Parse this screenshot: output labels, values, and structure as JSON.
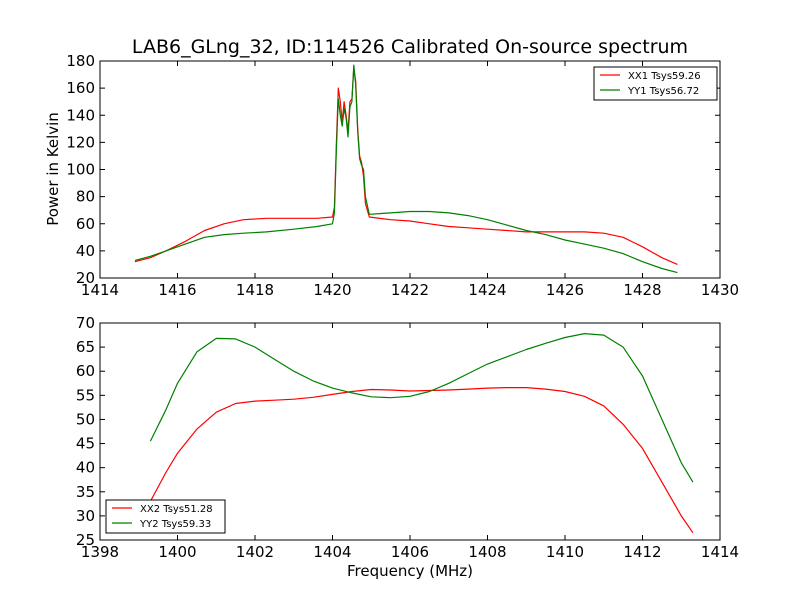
{
  "figure": {
    "title": "LAB6_GLng_32, ID:114526 Calibrated On-source spectrum"
  },
  "chart_data": [
    {
      "type": "line",
      "title": "LAB6_GLng_32, ID:114526 Calibrated On-source spectrum",
      "xlabel": "",
      "ylabel": "Power in Kelvin",
      "xlim": [
        1414,
        1430
      ],
      "ylim": [
        20,
        180
      ],
      "xticks": [
        1414,
        1416,
        1418,
        1420,
        1422,
        1424,
        1426,
        1428,
        1430
      ],
      "yticks": [
        20,
        40,
        60,
        80,
        100,
        120,
        140,
        160,
        180
      ],
      "grid": false,
      "legend_position": "top-right",
      "series": [
        {
          "name": "XX1 Tsys59.26",
          "color": "#ff0000",
          "points": [
            [
              1414.9,
              32
            ],
            [
              1415.3,
              35
            ],
            [
              1415.7,
              40
            ],
            [
              1416.2,
              47
            ],
            [
              1416.7,
              55
            ],
            [
              1417.2,
              60
            ],
            [
              1417.7,
              63
            ],
            [
              1418.3,
              64
            ],
            [
              1419.0,
              64
            ],
            [
              1419.6,
              64
            ],
            [
              1420.0,
              65
            ],
            [
              1420.05,
              72
            ],
            [
              1420.1,
              120
            ],
            [
              1420.15,
              160
            ],
            [
              1420.2,
              150
            ],
            [
              1420.25,
              135
            ],
            [
              1420.3,
              150
            ],
            [
              1420.35,
              140
            ],
            [
              1420.4,
              128
            ],
            [
              1420.45,
              150
            ],
            [
              1420.5,
              152
            ],
            [
              1420.55,
              175
            ],
            [
              1420.6,
              165
            ],
            [
              1420.65,
              130
            ],
            [
              1420.7,
              110
            ],
            [
              1420.75,
              105
            ],
            [
              1420.8,
              95
            ],
            [
              1420.85,
              75
            ],
            [
              1420.95,
              65
            ],
            [
              1421.5,
              63
            ],
            [
              1422.0,
              62
            ],
            [
              1422.5,
              60
            ],
            [
              1423.0,
              58
            ],
            [
              1423.5,
              57
            ],
            [
              1424.0,
              56
            ],
            [
              1424.5,
              55
            ],
            [
              1425.0,
              54
            ],
            [
              1425.5,
              54
            ],
            [
              1426.0,
              54
            ],
            [
              1426.5,
              54
            ],
            [
              1427.0,
              53
            ],
            [
              1427.5,
              50
            ],
            [
              1428.0,
              43
            ],
            [
              1428.5,
              35
            ],
            [
              1428.9,
              30
            ]
          ]
        },
        {
          "name": "YY1 Tsys56.72",
          "color": "#008000",
          "points": [
            [
              1414.9,
              33
            ],
            [
              1415.3,
              36
            ],
            [
              1415.7,
              40
            ],
            [
              1416.2,
              45
            ],
            [
              1416.7,
              50
            ],
            [
              1417.2,
              52
            ],
            [
              1417.7,
              53
            ],
            [
              1418.3,
              54
            ],
            [
              1419.0,
              56
            ],
            [
              1419.6,
              58
            ],
            [
              1420.0,
              60
            ],
            [
              1420.05,
              68
            ],
            [
              1420.1,
              115
            ],
            [
              1420.15,
              152
            ],
            [
              1420.2,
              140
            ],
            [
              1420.25,
              132
            ],
            [
              1420.3,
              145
            ],
            [
              1420.35,
              138
            ],
            [
              1420.4,
              124
            ],
            [
              1420.45,
              146
            ],
            [
              1420.5,
              150
            ],
            [
              1420.55,
              177
            ],
            [
              1420.6,
              162
            ],
            [
              1420.65,
              128
            ],
            [
              1420.7,
              108
            ],
            [
              1420.75,
              103
            ],
            [
              1420.8,
              100
            ],
            [
              1420.85,
              80
            ],
            [
              1420.95,
              67
            ],
            [
              1421.5,
              68
            ],
            [
              1422.0,
              69
            ],
            [
              1422.5,
              69
            ],
            [
              1423.0,
              68
            ],
            [
              1423.5,
              66
            ],
            [
              1424.0,
              63
            ],
            [
              1424.5,
              59
            ],
            [
              1425.0,
              55
            ],
            [
              1425.5,
              52
            ],
            [
              1426.0,
              48
            ],
            [
              1426.5,
              45
            ],
            [
              1427.0,
              42
            ],
            [
              1427.5,
              38
            ],
            [
              1428.0,
              32
            ],
            [
              1428.5,
              27
            ],
            [
              1428.9,
              24
            ]
          ]
        }
      ]
    },
    {
      "type": "line",
      "title": "",
      "xlabel": "Frequency (MHz)",
      "ylabel": "",
      "xlim": [
        1398,
        1414
      ],
      "ylim": [
        25,
        70
      ],
      "xticks": [
        1398,
        1400,
        1402,
        1404,
        1406,
        1408,
        1410,
        1412,
        1414
      ],
      "yticks": [
        25,
        30,
        35,
        40,
        45,
        50,
        55,
        60,
        65,
        70
      ],
      "grid": false,
      "legend_position": "bottom-left",
      "series": [
        {
          "name": "XX2 Tsys51.28",
          "color": "#ff0000",
          "points": [
            [
              1399.3,
              33
            ],
            [
              1399.7,
              39
            ],
            [
              1400.0,
              43
            ],
            [
              1400.5,
              48
            ],
            [
              1401.0,
              51.5
            ],
            [
              1401.5,
              53.3
            ],
            [
              1402.0,
              53.8
            ],
            [
              1402.5,
              54
            ],
            [
              1403.0,
              54.2
            ],
            [
              1403.5,
              54.6
            ],
            [
              1404.0,
              55.2
            ],
            [
              1404.5,
              55.8
            ],
            [
              1405.0,
              56.2
            ],
            [
              1405.5,
              56.1
            ],
            [
              1406.0,
              55.9
            ],
            [
              1406.5,
              56
            ],
            [
              1407.0,
              56.1
            ],
            [
              1407.5,
              56.3
            ],
            [
              1408.0,
              56.5
            ],
            [
              1408.5,
              56.6
            ],
            [
              1409.0,
              56.6
            ],
            [
              1409.5,
              56.3
            ],
            [
              1410.0,
              55.8
            ],
            [
              1410.5,
              54.8
            ],
            [
              1411.0,
              52.8
            ],
            [
              1411.5,
              49
            ],
            [
              1412.0,
              44
            ],
            [
              1412.5,
              37
            ],
            [
              1413.0,
              30
            ],
            [
              1413.3,
              26.5
            ]
          ]
        },
        {
          "name": "YY2 Tsys59.33",
          "color": "#008000",
          "points": [
            [
              1399.3,
              45.5
            ],
            [
              1399.7,
              52
            ],
            [
              1400.0,
              57.5
            ],
            [
              1400.5,
              64
            ],
            [
              1401.0,
              66.8
            ],
            [
              1401.5,
              66.7
            ],
            [
              1402.0,
              65
            ],
            [
              1402.5,
              62.5
            ],
            [
              1403.0,
              60
            ],
            [
              1403.5,
              58
            ],
            [
              1404.0,
              56.5
            ],
            [
              1404.5,
              55.5
            ],
            [
              1405.0,
              54.7
            ],
            [
              1405.5,
              54.5
            ],
            [
              1406.0,
              54.8
            ],
            [
              1406.5,
              55.8
            ],
            [
              1407.0,
              57.5
            ],
            [
              1407.5,
              59.5
            ],
            [
              1408.0,
              61.5
            ],
            [
              1408.5,
              63
            ],
            [
              1409.0,
              64.5
            ],
            [
              1409.5,
              65.8
            ],
            [
              1410.0,
              67
            ],
            [
              1410.5,
              67.8
            ],
            [
              1411.0,
              67.5
            ],
            [
              1411.5,
              65
            ],
            [
              1412.0,
              59
            ],
            [
              1412.5,
              50
            ],
            [
              1413.0,
              41
            ],
            [
              1413.3,
              37
            ]
          ]
        }
      ]
    }
  ]
}
